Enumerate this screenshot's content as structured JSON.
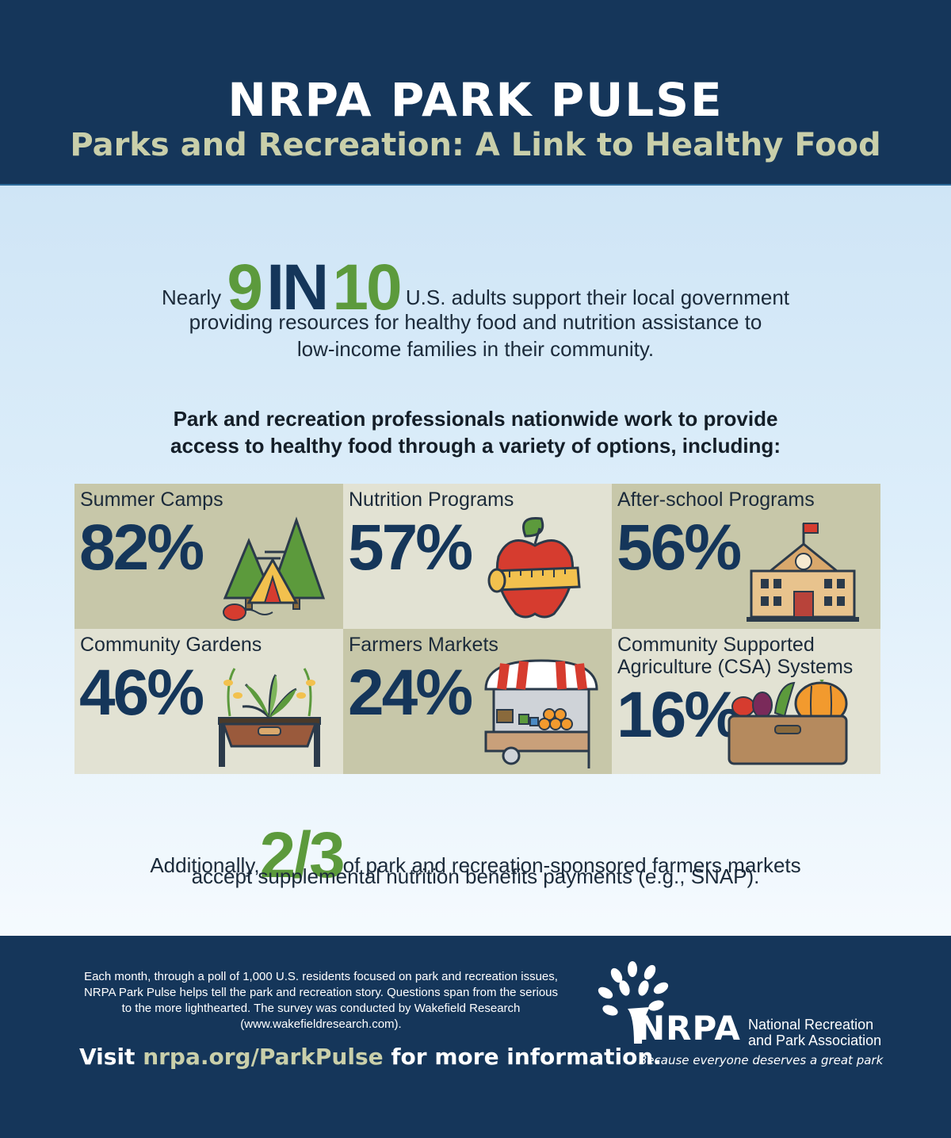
{
  "header": {
    "title": "NRPA PARK PULSE",
    "subtitle": "Parks and Recreation: A Link to Healthy Food"
  },
  "headline_stat": {
    "prefix": "Nearly",
    "num1": "9",
    "word": "IN",
    "num2": "10",
    "line1_rest": "U.S. adults support their local government",
    "line2": "providing resources for healthy food and nutrition assistance to",
    "line3": "low-income families in their community."
  },
  "intro": {
    "line1": "Park and recreation professionals nationwide work to provide",
    "line2": "access to healthy food through a variety of options, including:"
  },
  "options": [
    {
      "label": "Summer Camps",
      "value": "82%",
      "icon": "camp-tent-icon"
    },
    {
      "label": "Nutrition Programs",
      "value": "57%",
      "icon": "apple-tape-icon"
    },
    {
      "label": "After-school Programs",
      "value": "56%",
      "icon": "school-icon"
    },
    {
      "label": "Community Gardens",
      "value": "46%",
      "icon": "planter-icon"
    },
    {
      "label": "Farmers Markets",
      "value": "24%",
      "icon": "market-cart-icon"
    },
    {
      "label_line1": "Community Supported",
      "label_line2": "Agriculture (CSA) Systems",
      "value": "16%",
      "icon": "vegetable-crate-icon"
    }
  ],
  "additional_stat": {
    "prefix": "Additionally,",
    "fraction": "2/3",
    "line1_rest": "of park and recreation-sponsored farmers markets",
    "line2": "accept supplemental nutrition benefits payments (e.g., SNAP)."
  },
  "footer": {
    "line1": "Each month, through a poll of 1,000 U.S. residents focused on park and recreation issues,",
    "line2": "NRPA Park Pulse helps tell the park and recreation story. Questions span from the serious",
    "line3": "to the more lighthearted. The survey was conducted by Wakefield Research",
    "line4": "(www.wakefieldresearch.com).",
    "visit_prefix": "Visit",
    "visit_link": "nrpa.org/ParkPulse",
    "visit_suffix": "for more information."
  },
  "logo": {
    "name": "NRPA",
    "full_line1": "National Recreation",
    "full_line2": "and Park Association",
    "tagline": "Because everyone deserves a great park"
  },
  "colors": {
    "navy": "#15365a",
    "green": "#5c9a3c",
    "khaki": "#c9cfaa",
    "tile_dark": "#c7c7a9",
    "tile_light": "#e2e2d3"
  }
}
